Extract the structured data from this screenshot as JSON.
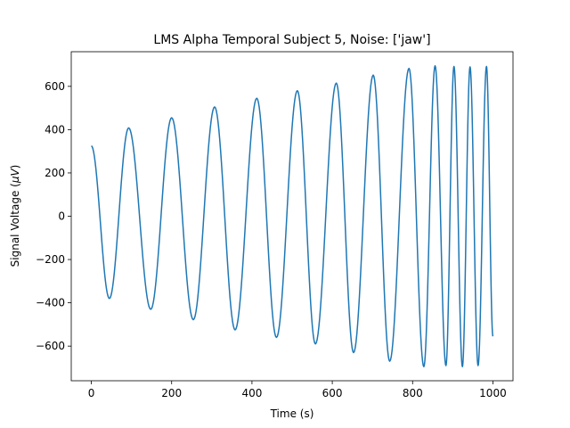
{
  "chart_data": {
    "type": "line",
    "title": "LMS Alpha Temporal Subject 5, Noise: ['jaw']",
    "xlabel": "Time (s)",
    "ylabel_prefix": "Signal Voltage (",
    "ylabel_unit": "μV",
    "ylabel_suffix": ")",
    "xlim": [
      -50,
      1050
    ],
    "ylim": [
      -760,
      760
    ],
    "xticks": [
      0,
      200,
      400,
      600,
      800,
      1000
    ],
    "yticks": [
      -600,
      -400,
      -200,
      0,
      200,
      400,
      600
    ],
    "xtick_labels": [
      "0",
      "200",
      "400",
      "600",
      "800",
      "1000"
    ],
    "ytick_labels": [
      "−600",
      "−400",
      "−200",
      "0",
      "200",
      "400",
      "600"
    ],
    "grid": false,
    "series": [
      {
        "color": "#1f77b4",
        "x": [
          0,
          45,
          93,
          148,
          200,
          254,
          307,
          358,
          412,
          461,
          513,
          558,
          610,
          653,
          702,
          743,
          791,
          828,
          856,
          883,
          903,
          924,
          943,
          963,
          984,
          1000
        ],
        "y": [
          325,
          -380,
          408,
          -430,
          455,
          -478,
          505,
          -525,
          545,
          -560,
          580,
          -590,
          615,
          -630,
          652,
          -670,
          683,
          -695,
          695,
          -690,
          692,
          -695,
          690,
          -690,
          692,
          -555
        ]
      }
    ]
  }
}
